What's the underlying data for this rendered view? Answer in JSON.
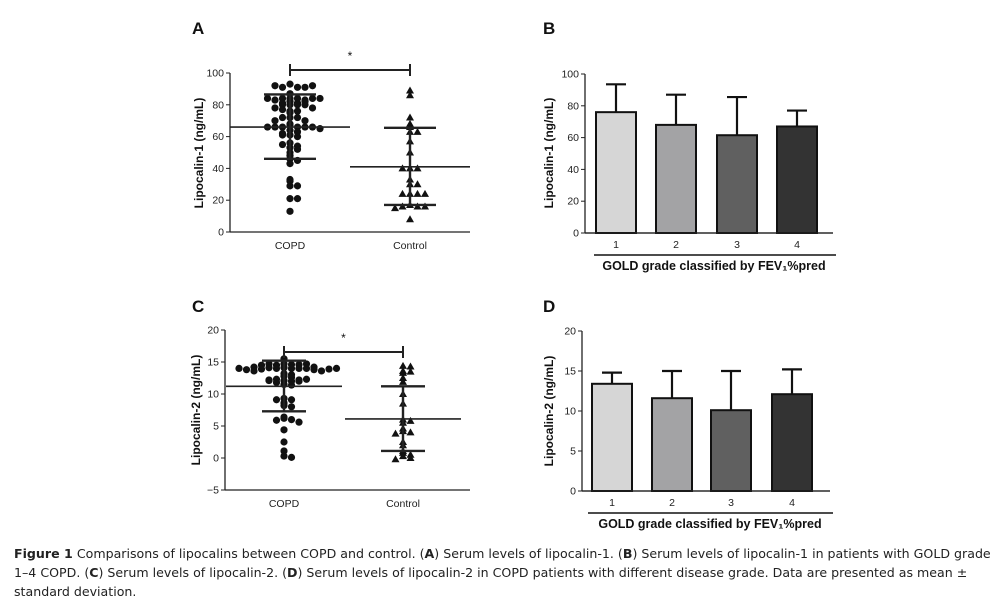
{
  "chart_data": [
    {
      "id": "A",
      "type": "scatter",
      "panel_label": "A",
      "title": "",
      "xlabel": "",
      "ylabel": "Lipocalin-1 (ng/mL)",
      "ylim": [
        0,
        100
      ],
      "yticks": [
        0,
        20,
        40,
        60,
        80,
        100
      ],
      "categories": [
        "COPD",
        "Control"
      ],
      "series": [
        {
          "name": "COPD",
          "marker": "circle",
          "mean": 66,
          "sd_low": 46,
          "sd_high": 86.5,
          "values": [
            93,
            91,
            91,
            91,
            92,
            92,
            84,
            84,
            84,
            83,
            82,
            81,
            80,
            80,
            80,
            80,
            81,
            82,
            83,
            84,
            84,
            87,
            84,
            78,
            76,
            76,
            78,
            77,
            75,
            72,
            72,
            72,
            70,
            68,
            70,
            67,
            66,
            66,
            66,
            66,
            66,
            66,
            65,
            64,
            61,
            60,
            61,
            63,
            62,
            56,
            53,
            54,
            55,
            52,
            50,
            48,
            46,
            45,
            43,
            33,
            32,
            29,
            29,
            21,
            21,
            13
          ]
        },
        {
          "name": "Control",
          "marker": "triangle",
          "mean": 41,
          "sd_low": 17,
          "sd_high": 65.5,
          "values": [
            89,
            86,
            72,
            68,
            66,
            63,
            63,
            57,
            50,
            40,
            40,
            40,
            33,
            30,
            30,
            24,
            24,
            24,
            24,
            17,
            16,
            16,
            16,
            15,
            8
          ]
        }
      ],
      "significance": {
        "between": [
          "COPD",
          "Control"
        ],
        "label": "*"
      }
    },
    {
      "id": "B",
      "type": "bar",
      "panel_label": "B",
      "title": "",
      "xlabel": "GOLD grade classified by FEV₁%pred",
      "ylabel": "Lipocalin-1 (ng/mL)",
      "ylim": [
        0,
        100
      ],
      "yticks": [
        0,
        20,
        40,
        60,
        80,
        100
      ],
      "categories": [
        "1",
        "2",
        "3",
        "4"
      ],
      "values": [
        76,
        68,
        61.5,
        67
      ],
      "error_upper": [
        93.5,
        87,
        85.5,
        77
      ],
      "colors": [
        "#d6d6d6",
        "#a3a3a5",
        "#606060",
        "#333333"
      ]
    },
    {
      "id": "C",
      "type": "scatter",
      "panel_label": "C",
      "title": "",
      "xlabel": "",
      "ylabel": "Lipocalin-2 (ng/mL)",
      "ylim": [
        -5,
        20
      ],
      "yticks": [
        -5,
        0,
        5,
        10,
        15,
        20
      ],
      "categories": [
        "COPD",
        "Control"
      ],
      "series": [
        {
          "name": "COPD",
          "marker": "circle",
          "mean": 11.2,
          "sd_low": 7.3,
          "sd_high": 15.2,
          "values": [
            15.5,
            14.7,
            14.6,
            14.5,
            14.6,
            14.7,
            14.7,
            14.5,
            14.2,
            14.1,
            14.0,
            14.0,
            14.0,
            14.1,
            14.2,
            14.0,
            13.9,
            13.8,
            13.6,
            13.6,
            13.8,
            13.9,
            14.0,
            14.0,
            13.2,
            13.0,
            12.8,
            12.6,
            12.3,
            12.2,
            12.1,
            12.0,
            11.8,
            12.0,
            12.1,
            12.2,
            12.3,
            11.5,
            11.4,
            9.3,
            9.1,
            9.1,
            8.6,
            8.2,
            8.0,
            6.4,
            6.2,
            6.0,
            5.9,
            5.6,
            4.4,
            2.5,
            1.1,
            0.3,
            0.1
          ]
        },
        {
          "name": "Control",
          "marker": "triangle",
          "mean": 6.1,
          "sd_low": 1.1,
          "sd_high": 11.2,
          "values": [
            14.4,
            14.3,
            13.6,
            13.3,
            13.5,
            12.5,
            11.9,
            10.0,
            8.5,
            6.0,
            5.8,
            5.5,
            4.6,
            4.2,
            4.0,
            3.8,
            2.5,
            2.0,
            1.1,
            0.8,
            0.5,
            0.3,
            0.0,
            -0.2
          ]
        }
      ],
      "significance": {
        "between": [
          "COPD",
          "Control"
        ],
        "label": "*"
      }
    },
    {
      "id": "D",
      "type": "bar",
      "panel_label": "D",
      "title": "",
      "xlabel": "GOLD grade classified by FEV₁%pred",
      "ylabel": "Lipocalin-2 (ng/mL)",
      "ylim": [
        0,
        20
      ],
      "yticks": [
        0,
        5,
        10,
        15,
        20
      ],
      "categories": [
        "1",
        "2",
        "3",
        "4"
      ],
      "values": [
        13.4,
        11.6,
        10.1,
        12.1
      ],
      "error_upper": [
        14.8,
        15.0,
        15.0,
        15.2
      ],
      "colors": [
        "#d6d6d6",
        "#a3a3a5",
        "#606060",
        "#333333"
      ]
    }
  ],
  "caption": {
    "figure_label": "Figure 1",
    "title": " Comparisons of lipocalins between COPD and control. (",
    "parts": [
      {
        "bold": "A",
        "text": ") Serum levels of lipocalin-1. ("
      },
      {
        "bold": "B",
        "text": ") Serum levels of lipocalin-1 in patients with GOLD grade 1–4 COPD. ("
      },
      {
        "bold": "C",
        "text": ") Serum levels of lipocalin-2. ("
      },
      {
        "bold": "D",
        "text": ") Serum levels of lipocalin-2 in COPD patients with different disease grade. Data are presented as mean ± standard deviation."
      }
    ]
  }
}
